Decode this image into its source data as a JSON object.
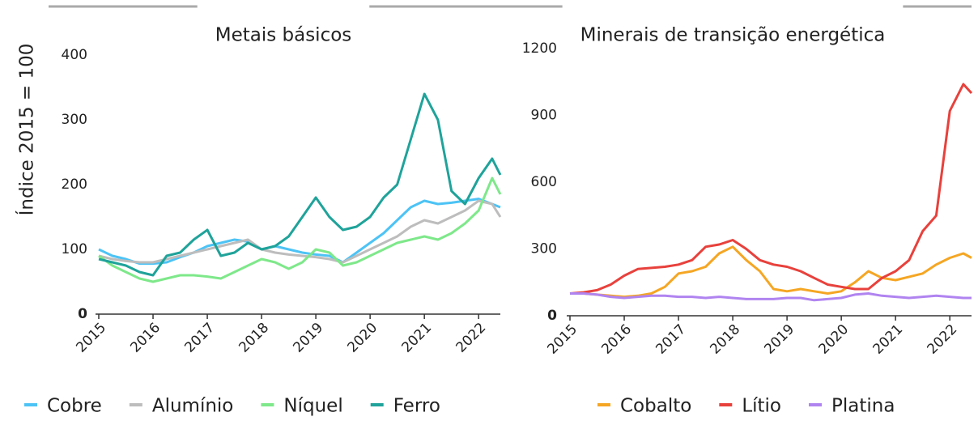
{
  "chart_data": [
    {
      "type": "line",
      "title": "Metais básicos",
      "ylabel": "Índice 2015 = 100",
      "x": [
        2015,
        2015.25,
        2015.5,
        2015.75,
        2016,
        2016.25,
        2016.5,
        2016.75,
        2017,
        2017.25,
        2017.5,
        2017.75,
        2018,
        2018.25,
        2018.5,
        2018.75,
        2019,
        2019.25,
        2019.5,
        2019.75,
        2020,
        2020.25,
        2020.5,
        2020.75,
        2021,
        2021.25,
        2021.5,
        2021.75,
        2022,
        2022.25,
        2022.4
      ],
      "series": [
        {
          "name": "Cobre",
          "color": "#4dc3f5",
          "values": [
            100,
            90,
            85,
            78,
            78,
            80,
            88,
            95,
            105,
            110,
            115,
            112,
            100,
            105,
            100,
            95,
            92,
            90,
            80,
            95,
            110,
            125,
            145,
            165,
            175,
            170,
            172,
            175,
            178,
            170,
            165
          ]
        },
        {
          "name": "Alumínio",
          "color": "#bdbdbd",
          "values": [
            90,
            85,
            82,
            80,
            80,
            85,
            90,
            95,
            100,
            105,
            110,
            115,
            100,
            95,
            92,
            90,
            88,
            85,
            80,
            90,
            100,
            110,
            120,
            135,
            145,
            140,
            150,
            160,
            175,
            170,
            150
          ]
        },
        {
          "name": "Níquel",
          "color": "#7ee88a",
          "values": [
            90,
            75,
            65,
            55,
            50,
            55,
            60,
            60,
            58,
            55,
            65,
            75,
            85,
            80,
            70,
            80,
            100,
            95,
            75,
            80,
            90,
            100,
            110,
            115,
            120,
            115,
            125,
            140,
            160,
            210,
            185
          ]
        },
        {
          "name": "Ferro",
          "color": "#1fa39a",
          "values": [
            85,
            80,
            75,
            65,
            60,
            90,
            95,
            115,
            130,
            90,
            95,
            110,
            100,
            105,
            120,
            150,
            180,
            150,
            130,
            135,
            150,
            180,
            200,
            270,
            340,
            300,
            190,
            170,
            210,
            240,
            215
          ]
        }
      ],
      "xlim": [
        2015,
        2022.4
      ],
      "xticks": [
        2015,
        2016,
        2017,
        2018,
        2019,
        2020,
        2021,
        2022
      ],
      "ylim": [
        0,
        400
      ],
      "yticks": [
        0,
        100,
        200,
        300,
        400
      ],
      "grid": false
    },
    {
      "type": "line",
      "title": "Minerais de transição energética",
      "x": [
        2015,
        2015.25,
        2015.5,
        2015.75,
        2016,
        2016.25,
        2016.5,
        2016.75,
        2017,
        2017.25,
        2017.5,
        2017.75,
        2018,
        2018.25,
        2018.5,
        2018.75,
        2019,
        2019.25,
        2019.5,
        2019.75,
        2020,
        2020.25,
        2020.5,
        2020.75,
        2021,
        2021.25,
        2021.5,
        2021.75,
        2022,
        2022.25,
        2022.4
      ],
      "series": [
        {
          "name": "Cobalto",
          "color": "#f5a623",
          "values": [
            100,
            100,
            95,
            90,
            85,
            90,
            100,
            130,
            190,
            200,
            220,
            280,
            310,
            250,
            200,
            120,
            110,
            120,
            110,
            100,
            110,
            150,
            200,
            170,
            160,
            175,
            190,
            230,
            260,
            280,
            260
          ]
        },
        {
          "name": "Lítio",
          "color": "#e8413c",
          "values": [
            100,
            105,
            115,
            140,
            180,
            210,
            215,
            220,
            230,
            250,
            310,
            320,
            340,
            300,
            250,
            230,
            220,
            200,
            170,
            140,
            130,
            120,
            120,
            170,
            200,
            250,
            380,
            450,
            920,
            1040,
            1000
          ]
        },
        {
          "name": "Platina",
          "color": "#b084f0",
          "values": [
            100,
            100,
            95,
            85,
            80,
            85,
            90,
            90,
            85,
            85,
            80,
            85,
            80,
            75,
            75,
            75,
            80,
            80,
            70,
            75,
            80,
            95,
            100,
            90,
            85,
            80,
            85,
            90,
            85,
            80,
            80
          ]
        }
      ],
      "xlim": [
        2015,
        2022.4
      ],
      "xticks": [
        2015,
        2016,
        2017,
        2018,
        2019,
        2020,
        2021,
        2022
      ],
      "ylim": [
        0,
        1200
      ],
      "yticks": [
        0,
        300,
        600,
        900,
        1200
      ],
      "grid": false
    }
  ]
}
